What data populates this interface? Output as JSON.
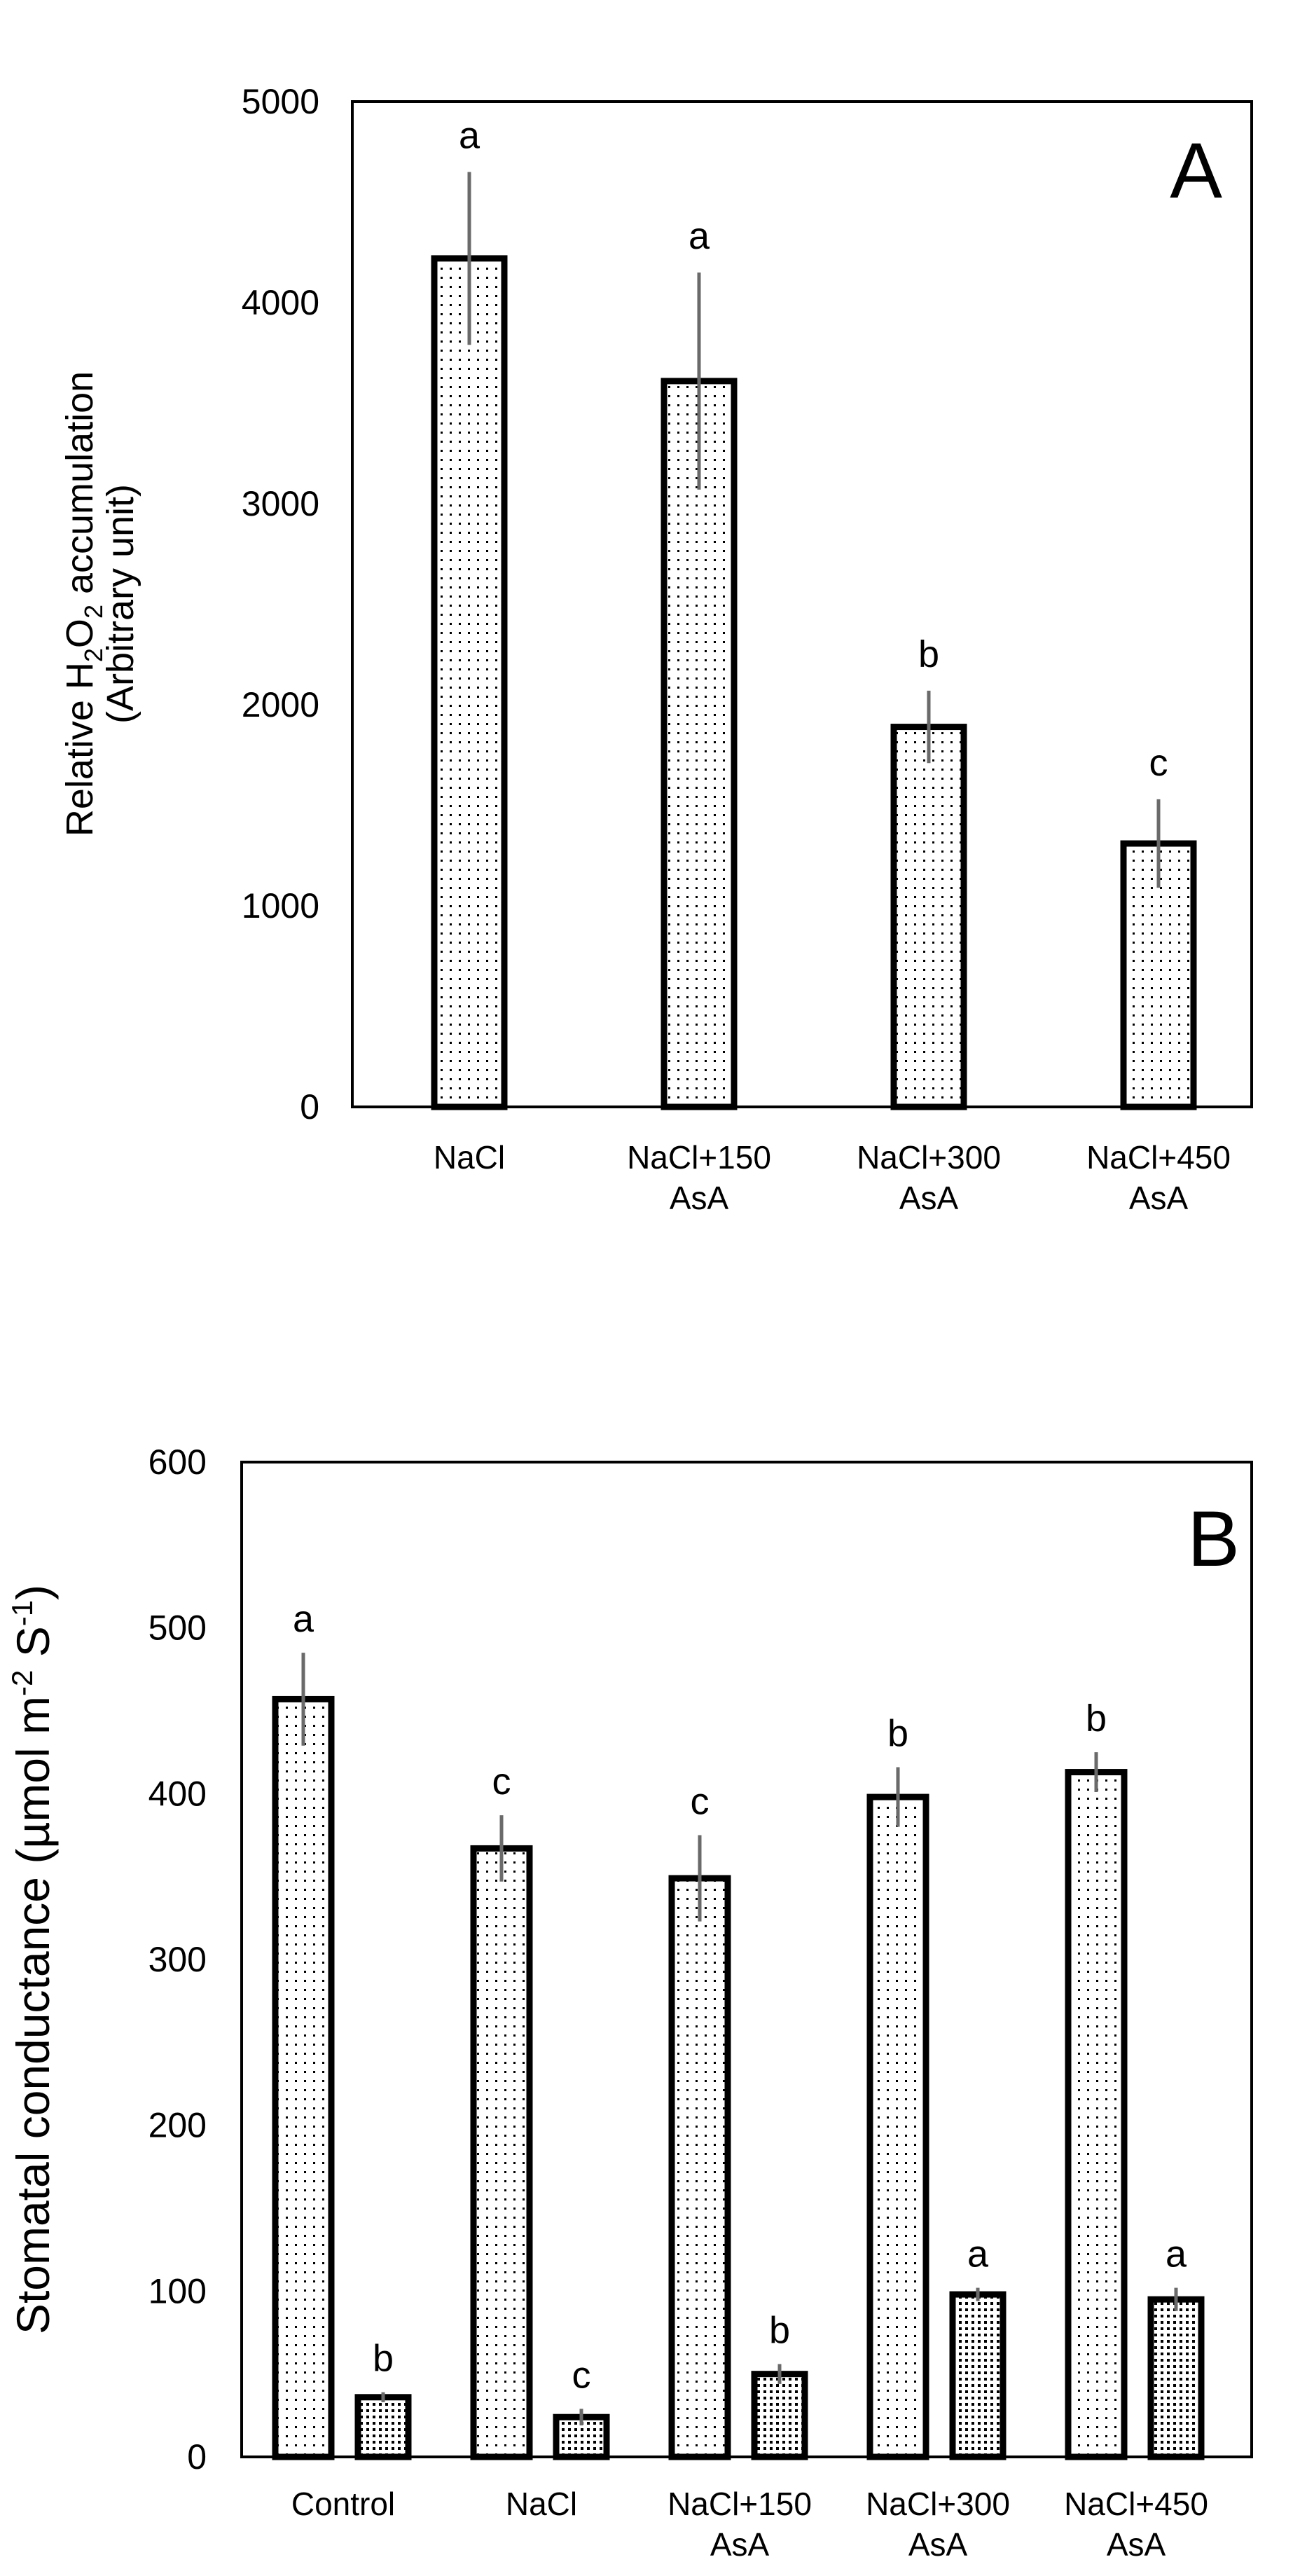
{
  "chart_data": [
    {
      "type": "bar",
      "panel_label": "A",
      "ylabel_parts": [
        "Relative H",
        "2",
        "O",
        "2",
        " accumulation"
      ],
      "ylabel_line2": "(Arbitrary unit)",
      "ylim": [
        0,
        5000
      ],
      "yticks": [
        0,
        1000,
        2000,
        3000,
        4000,
        5000
      ],
      "categories": [
        [
          "NaCl"
        ],
        [
          "NaCl+150",
          "AsA"
        ],
        [
          "NaCl+300",
          "AsA"
        ],
        [
          "NaCl+450",
          "AsA"
        ]
      ],
      "series": [
        {
          "name": "H2O2",
          "pattern": "light",
          "values": [
            4220,
            3610,
            1890,
            1310
          ],
          "errors": [
            430,
            540,
            180,
            220
          ],
          "labels": [
            "a",
            "a",
            "b",
            "c"
          ]
        }
      ]
    },
    {
      "type": "bar",
      "panel_label": "B",
      "ylabel_parts": [
        "Stomatal conductance (µmol m",
        "-2",
        " S",
        "-1",
        ")"
      ],
      "ylim": [
        0,
        600
      ],
      "yticks": [
        0,
        100,
        200,
        300,
        400,
        500,
        600
      ],
      "categories": [
        [
          "Control"
        ],
        [
          "NaCl"
        ],
        [
          "NaCl+150",
          "AsA"
        ],
        [
          "NaCl+300",
          "AsA"
        ],
        [
          "NaCl+450",
          "AsA"
        ]
      ],
      "series": [
        {
          "name": "series1",
          "pattern": "light",
          "values": [
            457,
            367,
            349,
            398,
            413
          ],
          "errors": [
            28,
            20,
            26,
            18,
            12
          ],
          "labels": [
            "a",
            "c",
            "c",
            "b",
            "b"
          ]
        },
        {
          "name": "series2",
          "pattern": "dark",
          "values": [
            36,
            24,
            50,
            98,
            95
          ],
          "errors": [
            3,
            5,
            6,
            4,
            7
          ],
          "labels": [
            "b",
            "c",
            "b",
            "a",
            "a"
          ]
        }
      ]
    }
  ]
}
